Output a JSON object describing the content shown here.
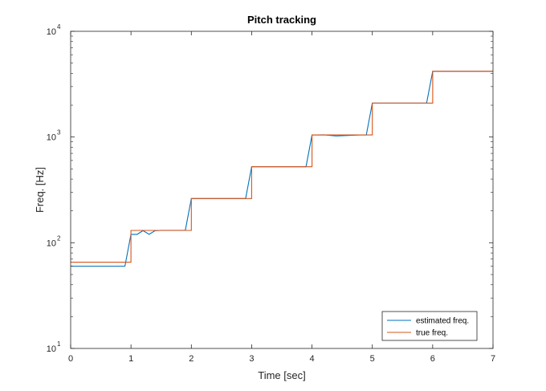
{
  "chart_data": {
    "type": "line",
    "title": "Pitch tracking",
    "xlabel": "Time [sec]",
    "ylabel": "Freq. [Hz]",
    "xlim": [
      0,
      7
    ],
    "ylim": [
      10,
      10000
    ],
    "yscale": "log",
    "grid": false,
    "legend_position": "bottom-right",
    "x_ticks": [
      "0",
      "1",
      "2",
      "3",
      "4",
      "5",
      "6",
      "7"
    ],
    "x_tick_values": [
      0,
      1,
      2,
      3,
      4,
      5,
      6,
      7
    ],
    "y_ticks": [
      {
        "value": 10,
        "base": "10",
        "exp": "1"
      },
      {
        "value": 100,
        "base": "10",
        "exp": "2"
      },
      {
        "value": 1000,
        "base": "10",
        "exp": "3"
      },
      {
        "value": 10000,
        "base": "10",
        "exp": "4"
      }
    ],
    "series": [
      {
        "name": "estimated freq.",
        "color": "#0072BD",
        "x": [
          0,
          0.9,
          1.0,
          1.1,
          1.2,
          1.3,
          1.4,
          1.5,
          1.9,
          2.0,
          2.1,
          2.9,
          3.0,
          3.1,
          3.9,
          4.0,
          4.1,
          4.2,
          4.4,
          4.6,
          4.8,
          4.9,
          5.0,
          5.1,
          5.9,
          6.0,
          7.0
        ],
        "y": [
          60,
          60,
          120,
          120,
          130,
          120,
          130,
          131,
          131,
          262,
          262,
          262,
          523,
          523,
          523,
          1046,
          1046,
          1050,
          1025,
          1035,
          1046,
          1046,
          2093,
          2093,
          2093,
          4186,
          4186
        ]
      },
      {
        "name": "true freq.",
        "color": "#D95319",
        "x": [
          0,
          1.0,
          1.0,
          2.0,
          2.0,
          3.0,
          3.0,
          4.0,
          4.0,
          5.0,
          5.0,
          6.0,
          6.0,
          7.0
        ],
        "y": [
          65.4,
          65.4,
          130.8,
          130.8,
          261.6,
          261.6,
          523.3,
          523.3,
          1046.5,
          1046.5,
          2093,
          2093,
          4186,
          4186
        ]
      }
    ]
  }
}
